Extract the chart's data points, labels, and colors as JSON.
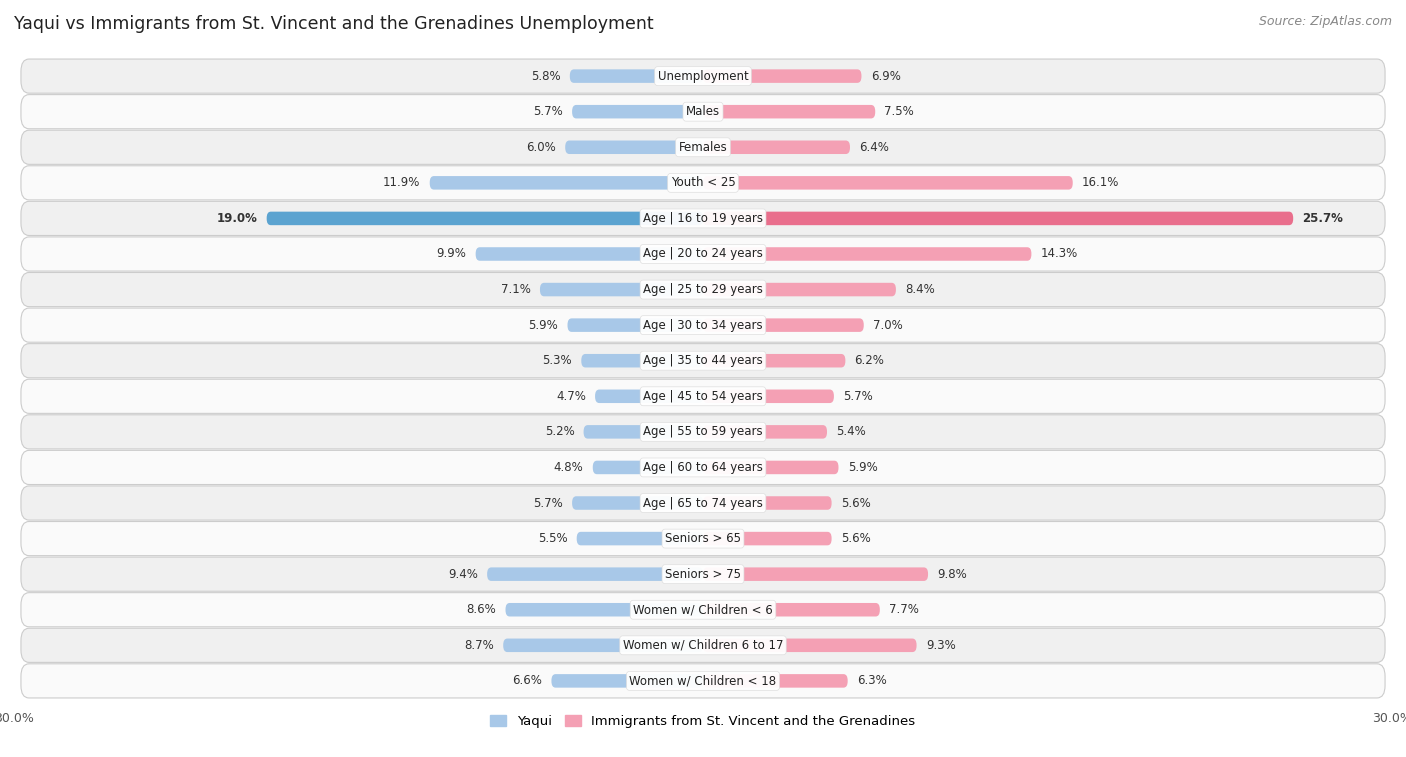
{
  "title": "Yaqui vs Immigrants from St. Vincent and the Grenadines Unemployment",
  "source": "Source: ZipAtlas.com",
  "categories": [
    "Unemployment",
    "Males",
    "Females",
    "Youth < 25",
    "Age | 16 to 19 years",
    "Age | 20 to 24 years",
    "Age | 25 to 29 years",
    "Age | 30 to 34 years",
    "Age | 35 to 44 years",
    "Age | 45 to 54 years",
    "Age | 55 to 59 years",
    "Age | 60 to 64 years",
    "Age | 65 to 74 years",
    "Seniors > 65",
    "Seniors > 75",
    "Women w/ Children < 6",
    "Women w/ Children 6 to 17",
    "Women w/ Children < 18"
  ],
  "yaqui": [
    5.8,
    5.7,
    6.0,
    11.9,
    19.0,
    9.9,
    7.1,
    5.9,
    5.3,
    4.7,
    5.2,
    4.8,
    5.7,
    5.5,
    9.4,
    8.6,
    8.7,
    6.6
  ],
  "immigrants": [
    6.9,
    7.5,
    6.4,
    16.1,
    25.7,
    14.3,
    8.4,
    7.0,
    6.2,
    5.7,
    5.4,
    5.9,
    5.6,
    5.6,
    9.8,
    7.7,
    9.3,
    6.3
  ],
  "yaqui_color": "#a8c8e8",
  "immigrant_color": "#f4a0b4",
  "yaqui_highlight_color": "#5ba3d0",
  "immigrant_highlight_color": "#e96e8c",
  "row_bg_odd": "#f0f0f0",
  "row_bg_even": "#fafafa",
  "row_border": "#dddddd",
  "axis_max": 30.0,
  "legend_yaqui": "Yaqui",
  "legend_immigrant": "Immigrants from St. Vincent and the Grenadines",
  "highlight_row": "Age | 16 to 19 years"
}
